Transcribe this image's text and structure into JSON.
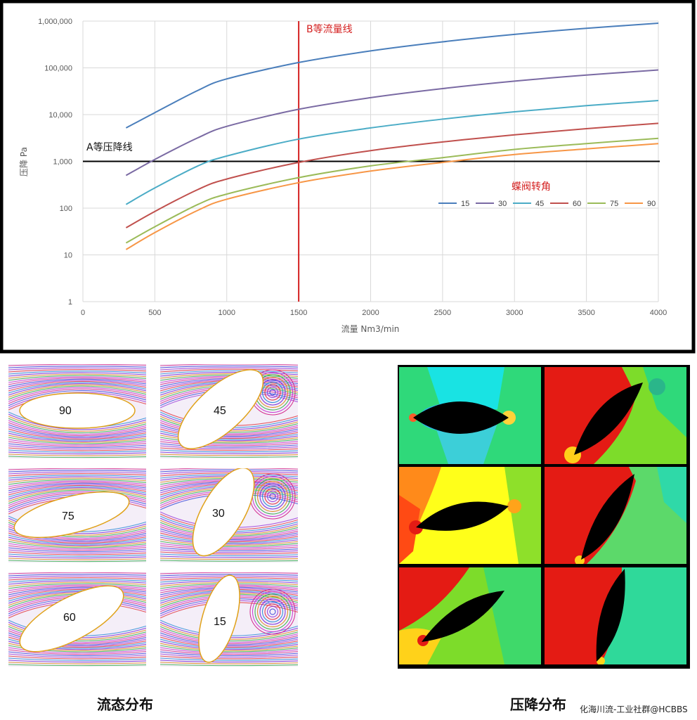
{
  "chart_data": {
    "type": "line",
    "x_scale": "linear",
    "y_scale": "log",
    "xlabel": "流量 Nm3/min",
    "ylabel": "压降 Pa",
    "xlim": [
      0,
      4000
    ],
    "ylim": [
      1,
      1000000
    ],
    "x_ticks": [
      "0",
      "500",
      "1000",
      "1500",
      "2000",
      "2500",
      "3000",
      "3500",
      "4000"
    ],
    "y_ticks": [
      "1",
      "10",
      "100",
      "1,000",
      "10,000",
      "100,000",
      "1,000,000"
    ],
    "legend_title": "蝶阀转角",
    "x": [
      300,
      500,
      800,
      1000,
      1500,
      2000,
      2500,
      3000,
      3500,
      4000
    ],
    "series": [
      {
        "name": "15",
        "color": "#4a7ebb",
        "values": [
          5200,
          11000,
          33000,
          58000,
          130000,
          230000,
          360000,
          520000,
          700000,
          900000
        ]
      },
      {
        "name": "30",
        "color": "#7a6aa3",
        "values": [
          500,
          1100,
          3200,
          5600,
          13000,
          23000,
          36000,
          52000,
          70000,
          90000
        ]
      },
      {
        "name": "45",
        "color": "#4bacc6",
        "values": [
          120,
          270,
          800,
          1300,
          3000,
          5200,
          8000,
          11500,
          15500,
          20000
        ]
      },
      {
        "name": "60",
        "color": "#c0504d",
        "values": [
          38,
          85,
          250,
          420,
          950,
          1700,
          2600,
          3700,
          5000,
          6500
        ]
      },
      {
        "name": "75",
        "color": "#9bbb59",
        "values": [
          18,
          40,
          120,
          200,
          450,
          800,
          1200,
          1800,
          2400,
          3100
        ]
      },
      {
        "name": "90",
        "color": "#f79646",
        "values": [
          13,
          30,
          90,
          155,
          350,
          620,
          950,
          1400,
          1850,
          2400
        ]
      }
    ],
    "reference_lines": [
      {
        "name": "A等压降线",
        "orientation": "horizontal",
        "value": 1000
      },
      {
        "name": "B等流量线",
        "orientation": "vertical",
        "value": 1500
      }
    ]
  },
  "flow_panels": [
    "90",
    "45",
    "75",
    "30",
    "60",
    "15"
  ],
  "captions": {
    "flow": "流态分布",
    "pressure": "压降分布"
  },
  "watermark": "化海川流-工业社群@HCBBS"
}
